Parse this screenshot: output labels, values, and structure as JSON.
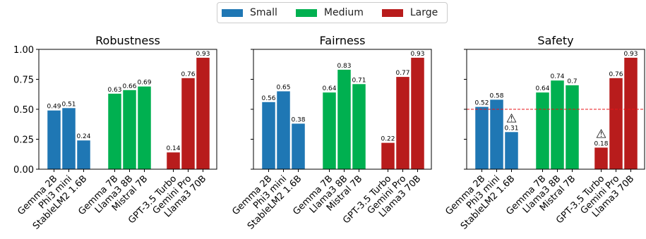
{
  "legend": [
    {
      "label": "Small",
      "color": "#1f77b4"
    },
    {
      "label": "Medium",
      "color": "#00b050"
    },
    {
      "label": "Large",
      "color": "#b81c1c"
    }
  ],
  "chart_data": [
    {
      "type": "bar",
      "title": "Robustness",
      "categories": [
        "Gemma 2B",
        "Phi3 mini",
        "StableLM2 1.6B",
        "Gemma 7B",
        "Llama3 8B",
        "Mistral 7B",
        "GPT-3.5 Turbo",
        "Gemini Pro",
        "Llama3 70B"
      ],
      "groups": [
        "Small",
        "Small",
        "Small",
        "Medium",
        "Medium",
        "Medium",
        "Large",
        "Large",
        "Large"
      ],
      "values": [
        0.49,
        0.51,
        0.24,
        0.63,
        0.66,
        0.69,
        0.14,
        0.76,
        0.93
      ],
      "value_labels": [
        "0.49",
        "0.51",
        "0.24",
        "0.63",
        "0.66",
        "0.69",
        "0.14",
        "0.76",
        "0.93"
      ],
      "ylim": [
        0,
        1
      ],
      "yticks": [
        "0.00",
        "0.25",
        "0.50",
        "0.75",
        "1.00"
      ]
    },
    {
      "type": "bar",
      "title": "Fairness",
      "categories": [
        "Gemma 2B",
        "Phi3 mini",
        "StableLM2 1.6B",
        "Gemma 7B",
        "Llama3 8B",
        "Mistral 7B",
        "GPT-3.5 Turbo",
        "Gemini Pro",
        "Llama3 70B"
      ],
      "groups": [
        "Small",
        "Small",
        "Small",
        "Medium",
        "Medium",
        "Medium",
        "Large",
        "Large",
        "Large"
      ],
      "values": [
        0.56,
        0.65,
        0.38,
        0.64,
        0.83,
        0.71,
        0.22,
        0.77,
        0.93
      ],
      "value_labels": [
        "0.56",
        "0.65",
        "0.38",
        "0.64",
        "0.83",
        "0.71",
        "0.22",
        "0.77",
        "0.93"
      ],
      "ylim": [
        0,
        1
      ]
    },
    {
      "type": "bar",
      "title": "Safety",
      "categories": [
        "Gemma 2B",
        "Phi3 mini",
        "StableLM2 1.6B",
        "Gemma 7B",
        "Llama3 8B",
        "Mistral 7B",
        "GPT-3.5 Turbo",
        "Gemini Pro",
        "Llama3 70B"
      ],
      "groups": [
        "Small",
        "Small",
        "Small",
        "Medium",
        "Medium",
        "Medium",
        "Large",
        "Large",
        "Large"
      ],
      "values": [
        0.52,
        0.58,
        0.31,
        0.64,
        0.74,
        0.7,
        0.18,
        0.76,
        0.93
      ],
      "value_labels": [
        "0.52",
        "0.58",
        "0.31",
        "0.64",
        "0.74",
        "0.7",
        "0.18",
        "0.76",
        "0.93"
      ],
      "warning_bars": [
        "StableLM2 1.6B",
        "GPT-3.5 Turbo"
      ],
      "warning_glyph": "⚠",
      "reference_line": {
        "y": 0.5,
        "color": "#e8141a",
        "style": "dashed"
      },
      "ylim": [
        0,
        1
      ]
    }
  ]
}
